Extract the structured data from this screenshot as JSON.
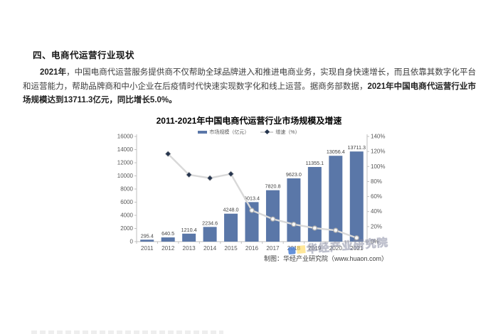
{
  "document": {
    "section_heading": "四、电商代运营行业现状",
    "paragraph": {
      "lead_bold": "2021年",
      "body": "，中国电商代运营服务提供商不仅帮助全球品牌进入和推进电商业务，实现自身快速增长，而且依靠其数字化平台和运营能力，帮助品牌商和中小企业在后疫情时代快速实现数字化和线上运营。据商务部数据，",
      "tail_bold": "2021年中国电商代运营行业市场规模达到13711.3亿元，同比增长5.0%。"
    },
    "watermark_text": "华经产业研究院",
    "source_note": "制图：华经产业研究院（www.huaon.com）"
  },
  "chart_data": {
    "type": "bar+line combo",
    "title": "2011-2021年中国电商代运营行业市场规模及增速",
    "categories": [
      "2011",
      "2012",
      "2013",
      "2014",
      "2015",
      "2016",
      "2017",
      "2018",
      "2019",
      "2020",
      "2021"
    ],
    "series": [
      {
        "name": "市场规模（亿元）",
        "type": "bar",
        "axis": "left",
        "values": [
          295.4,
          640.5,
          1210.4,
          2234.6,
          4248.0,
          6013.4,
          7820.8,
          9623.0,
          11355.1,
          13056.4,
          13711.3
        ]
      },
      {
        "name": "增速（%）",
        "type": "line",
        "axis": "right",
        "start_index": 1,
        "values": [
          116.8,
          89.0,
          84.6,
          90.1,
          41.6,
          30.1,
          23.0,
          18.0,
          15.0,
          5.0
        ]
      }
    ],
    "left_axis": {
      "min": 0,
      "max": 16000,
      "ticks": [
        0,
        2000,
        4000,
        6000,
        8000,
        10000,
        12000,
        14000,
        16000
      ]
    },
    "right_axis": {
      "min": 0,
      "max": 140,
      "suffix": "%",
      "ticks": [
        0,
        20,
        40,
        60,
        80,
        100,
        120,
        140
      ]
    },
    "legend_position": "top",
    "grid": false,
    "colors": {
      "bar": "#5A77A8",
      "line": "#D8D8D8",
      "marker_dark": "#26354E",
      "marker_light_fill": "#F7F7F7",
      "marker_light_stroke": "#ABABAB",
      "axis": "#BFBFBF",
      "tick_text": "#595959",
      "value_label": "#404040"
    }
  }
}
